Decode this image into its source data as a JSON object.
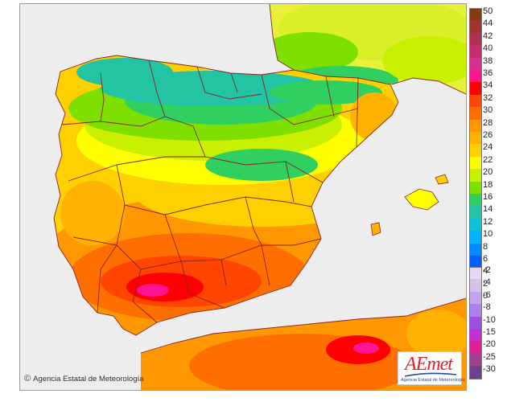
{
  "attribution": "Agencia Estatal de Meteorología",
  "logo": {
    "wordmark": "AEmet",
    "caption": "Agencia Estatal de Meteorología"
  },
  "legend": {
    "upper_scale": [
      {
        "label": "50",
        "color": "#8b3a0f"
      },
      {
        "label": "44",
        "color": "#a0352f"
      },
      {
        "label": "42",
        "color": "#b03050"
      },
      {
        "label": "40",
        "color": "#c42d6e"
      },
      {
        "label": "38",
        "color": "#d8308a"
      },
      {
        "label": "36",
        "color": "#ff1493"
      },
      {
        "label": "34",
        "color": "#ff0000"
      },
      {
        "label": "32",
        "color": "#ff4500"
      },
      {
        "label": "30",
        "color": "#ff6f00"
      },
      {
        "label": "28",
        "color": "#ff9800"
      },
      {
        "label": "26",
        "color": "#ffb300"
      },
      {
        "label": "24",
        "color": "#ffd000"
      },
      {
        "label": "22",
        "color": "#ffff00"
      },
      {
        "label": "20",
        "color": "#c8f000"
      },
      {
        "label": "18",
        "color": "#7fe000"
      },
      {
        "label": "16",
        "color": "#30d060"
      },
      {
        "label": "14",
        "color": "#22c4a4"
      },
      {
        "label": "12",
        "color": "#10c0d8"
      },
      {
        "label": "10",
        "color": "#00b4ff"
      },
      {
        "label": "8",
        "color": "#008cff"
      },
      {
        "label": "6",
        "color": "#0060ff"
      },
      {
        "label": "4",
        "color": "#0040d8"
      },
      {
        "label": "2",
        "color": "#0020b0"
      },
      {
        "label": "0",
        "color": "#000080"
      }
    ],
    "lower_scale": [
      {
        "label": "-2",
        "color": "#e6d8f0"
      },
      {
        "label": "-4",
        "color": "#d6c0ec"
      },
      {
        "label": "-6",
        "color": "#c4a4ec"
      },
      {
        "label": "-8",
        "color": "#b080ea"
      },
      {
        "label": "-10",
        "color": "#9a50e0"
      },
      {
        "label": "-15",
        "color": "#c030d0"
      },
      {
        "label": "-20",
        "color": "#e0209a"
      },
      {
        "label": "-25",
        "color": "#a04090"
      },
      {
        "label": "-30",
        "color": "#704090"
      }
    ]
  },
  "colors": {
    "sea": "#ededed",
    "border": "#8b2323",
    "foreign_land": "#dcdcdc"
  }
}
